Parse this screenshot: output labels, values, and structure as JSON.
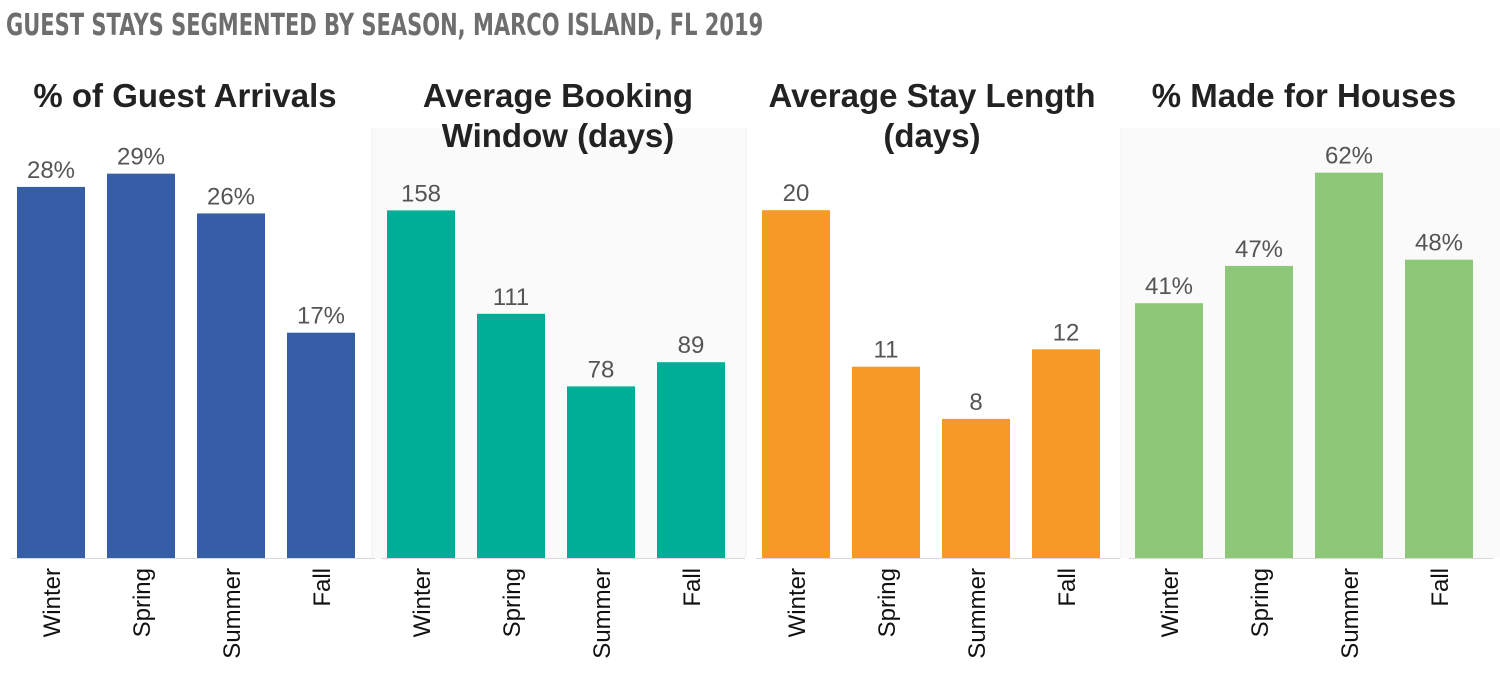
{
  "title": "GUEST STAYS SEGMENTED BY SEASON, MARCO ISLAND, FL 2019",
  "chart_data": [
    {
      "type": "bar",
      "title_lines": [
        "% of Guest Arrivals"
      ],
      "categories": [
        "Winter",
        "Spring",
        "Summer",
        "Fall"
      ],
      "values": [
        28,
        29,
        26,
        17
      ],
      "value_labels": [
        "28%",
        "29%",
        "26%",
        "17%"
      ],
      "ylim": [
        0,
        33.2
      ],
      "color": "#355ea6"
    },
    {
      "type": "bar",
      "title_lines": [
        "Average Booking",
        "Window (days)"
      ],
      "categories": [
        "Winter",
        "Spring",
        "Summer",
        "Fall"
      ],
      "values": [
        158,
        111,
        78,
        89
      ],
      "value_labels": [
        "158",
        "111",
        "78",
        "89"
      ],
      "ylim": [
        0,
        200
      ],
      "color": "#00ae98"
    },
    {
      "type": "bar",
      "title_lines": [
        "Average Stay Length",
        "(days)"
      ],
      "categories": [
        "Winter",
        "Spring",
        "Summer",
        "Fall"
      ],
      "values": [
        20,
        11,
        8,
        12
      ],
      "value_labels": [
        "20",
        "11",
        "8",
        "12"
      ],
      "ylim": [
        0,
        25.3
      ],
      "color": "#f49a25"
    },
    {
      "type": "bar",
      "title_lines": [
        "% Made for Houses"
      ],
      "categories": [
        "Winter",
        "Spring",
        "Summer",
        "Fall"
      ],
      "values": [
        41,
        47,
        62,
        48
      ],
      "value_labels": [
        "41%",
        "47%",
        "62%",
        "48%"
      ],
      "ylim": [
        0,
        70.8
      ],
      "color": "#8dc878"
    }
  ]
}
